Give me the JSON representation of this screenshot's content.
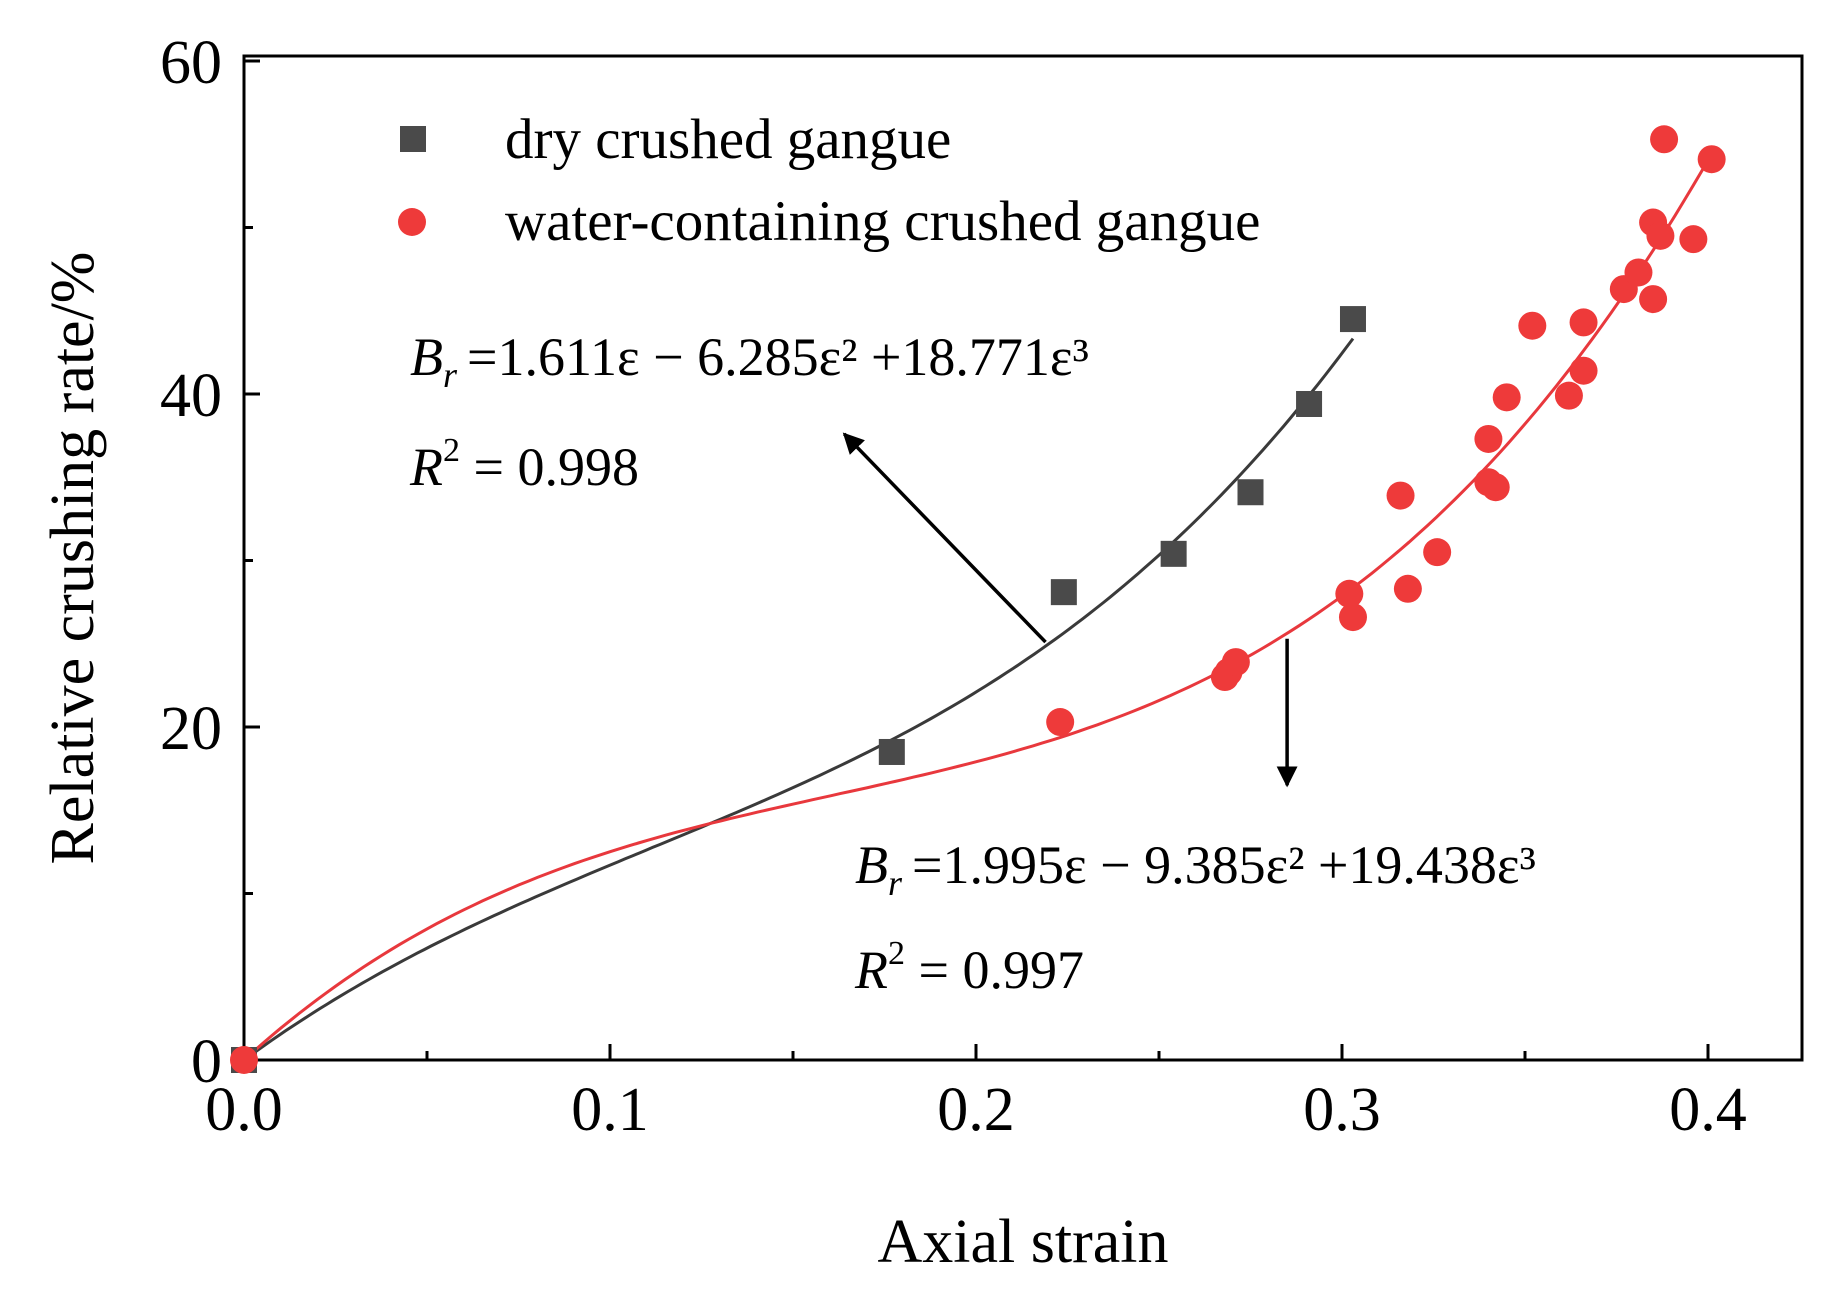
{
  "chart_data": {
    "type": "scatter",
    "title": "",
    "xlabel": "Axial strain",
    "ylabel": "Relative crushing rate/%",
    "xlim": [
      0.0,
      0.425
    ],
    "ylim": [
      0,
      60
    ],
    "x_ticks": [
      0.0,
      0.1,
      0.2,
      0.3,
      0.4
    ],
    "x_tick_labels": [
      "0.0",
      "0.1",
      "0.2",
      "0.3",
      "0.4"
    ],
    "y_ticks": [
      0,
      20,
      40,
      60
    ],
    "y_tick_labels": [
      "0",
      "20",
      "40",
      "60"
    ],
    "legend_position": "top-left",
    "series": [
      {
        "name": "dry crushed gangue",
        "marker": "square",
        "color": "#4a4a4a",
        "points": [
          {
            "x": 0.0,
            "y": 0.0
          },
          {
            "x": 0.177,
            "y": 18.5
          },
          {
            "x": 0.224,
            "y": 28.1
          },
          {
            "x": 0.254,
            "y": 30.4
          },
          {
            "x": 0.275,
            "y": 34.1
          },
          {
            "x": 0.291,
            "y": 39.4
          },
          {
            "x": 0.303,
            "y": 44.5
          }
        ],
        "fit": {
          "coefficients": [
            1.611,
            -6.285,
            18.771
          ],
          "x_range": [
            0.0,
            0.303
          ],
          "color": "#3a3a3a",
          "equation": {
            "lhs": "B",
            "sub": "r",
            "rhs": "=1.611ε − 6.285ε² +18.771ε³"
          },
          "r2": {
            "lhs": "R",
            "sup": "2",
            "rhs": " = 0.998"
          }
        }
      },
      {
        "name": "water-containing crushed gangue",
        "marker": "circle",
        "color": "#ee3a3a",
        "points": [
          {
            "x": 0.0,
            "y": 0.0
          },
          {
            "x": 0.223,
            "y": 20.3
          },
          {
            "x": 0.268,
            "y": 23.0
          },
          {
            "x": 0.269,
            "y": 23.3
          },
          {
            "x": 0.271,
            "y": 23.9
          },
          {
            "x": 0.302,
            "y": 28.0
          },
          {
            "x": 0.303,
            "y": 26.6
          },
          {
            "x": 0.316,
            "y": 33.9
          },
          {
            "x": 0.318,
            "y": 28.3
          },
          {
            "x": 0.326,
            "y": 30.5
          },
          {
            "x": 0.34,
            "y": 37.3
          },
          {
            "x": 0.34,
            "y": 34.7
          },
          {
            "x": 0.342,
            "y": 34.4
          },
          {
            "x": 0.345,
            "y": 39.8
          },
          {
            "x": 0.352,
            "y": 44.1
          },
          {
            "x": 0.362,
            "y": 39.9
          },
          {
            "x": 0.366,
            "y": 44.3
          },
          {
            "x": 0.366,
            "y": 41.4
          },
          {
            "x": 0.377,
            "y": 46.3
          },
          {
            "x": 0.381,
            "y": 47.3
          },
          {
            "x": 0.385,
            "y": 45.7
          },
          {
            "x": 0.385,
            "y": 50.3
          },
          {
            "x": 0.387,
            "y": 49.5
          },
          {
            "x": 0.388,
            "y": 55.3
          },
          {
            "x": 0.396,
            "y": 49.3
          },
          {
            "x": 0.401,
            "y": 54.1
          }
        ],
        "fit": {
          "coefficients": [
            1.995,
            -9.385,
            19.438
          ],
          "x_range": [
            0.0,
            0.401
          ],
          "color": "#e8383d",
          "equation": {
            "lhs": "B",
            "sub": "r",
            "rhs": "=1.995ε − 9.385ε² +19.438ε³"
          },
          "r2": {
            "lhs": "R",
            "sup": "2",
            "rhs": " = 0.997"
          }
        }
      }
    ],
    "annotations": [
      {
        "type": "arrow",
        "from": {
          "x": 0.219,
          "y": 25.1
        },
        "to": {
          "x": 0.164,
          "y": 37.6
        }
      },
      {
        "type": "arrow",
        "from": {
          "x": 0.285,
          "y": 25.3
        },
        "to": {
          "x": 0.285,
          "y": 16.5
        }
      }
    ]
  }
}
